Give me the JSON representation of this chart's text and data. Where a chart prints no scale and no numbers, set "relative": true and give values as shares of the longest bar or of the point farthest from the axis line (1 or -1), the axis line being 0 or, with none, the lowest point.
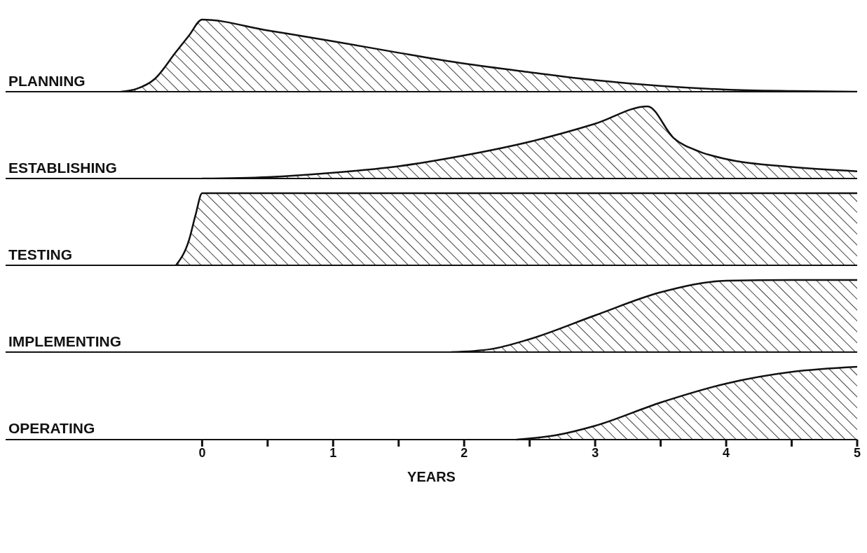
{
  "chart_data": [
    {
      "type": "area",
      "title": "PLANNING",
      "relative": true,
      "color": "#111111",
      "x": [
        -0.62,
        -0.5,
        -0.36,
        -0.2,
        -0.1,
        0,
        0.5,
        1,
        1.5,
        2,
        2.5,
        3,
        3.5,
        4,
        4.5,
        5
      ],
      "values": [
        0,
        0.04,
        0.18,
        0.55,
        0.78,
        1,
        0.85,
        0.7,
        0.54,
        0.39,
        0.27,
        0.16,
        0.08,
        0.03,
        0.01,
        0
      ],
      "xlim": [
        -1.5,
        5
      ],
      "tick_labels": false
    },
    {
      "type": "area",
      "title": "ESTABLISHING",
      "relative": true,
      "color": "#111111",
      "x": [
        0,
        0.5,
        1,
        1.5,
        2,
        2.5,
        3,
        3.4,
        3.6,
        3.8,
        4,
        4.5,
        5
      ],
      "values": [
        0,
        0.02,
        0.08,
        0.17,
        0.32,
        0.51,
        0.76,
        1,
        0.56,
        0.37,
        0.27,
        0.16,
        0.1
      ],
      "xlim": [
        -1.5,
        5
      ],
      "tick_labels": false
    },
    {
      "type": "area",
      "title": "TESTING",
      "relative": true,
      "color": "#111111",
      "x": [
        -0.2,
        -0.1,
        -0.05,
        0,
        5
      ],
      "values": [
        0,
        0.35,
        0.7,
        1,
        1
      ],
      "xlim": [
        -1.5,
        5
      ],
      "tick_labels": false
    },
    {
      "type": "area",
      "title": "IMPLEMENTING",
      "relative": true,
      "color": "#111111",
      "x": [
        1.9,
        2.2,
        2.5,
        3,
        3.5,
        4,
        4.5,
        5
      ],
      "values": [
        0,
        0.04,
        0.18,
        0.51,
        0.83,
        0.99,
        1,
        1
      ],
      "xlim": [
        -1.5,
        5
      ],
      "tick_labels": false
    },
    {
      "type": "area",
      "title": "OPERATING",
      "relative": true,
      "color": "#111111",
      "x": [
        2.4,
        2.7,
        3,
        3.5,
        4,
        4.5,
        5
      ],
      "values": [
        0,
        0.06,
        0.19,
        0.51,
        0.77,
        0.93,
        1
      ],
      "xlim": [
        -1.5,
        5
      ],
      "xticks": [
        0,
        {
          "value": 0.5,
          "label": null
        },
        1,
        {
          "value": 1.5,
          "label": null
        },
        2,
        {
          "value": 2.5,
          "label": null
        },
        3,
        {
          "value": 3.5,
          "label": null
        },
        4,
        {
          "value": 4.5,
          "label": null
        },
        5
      ],
      "xlabel": "YEARS",
      "tick_labels": "x"
    }
  ]
}
